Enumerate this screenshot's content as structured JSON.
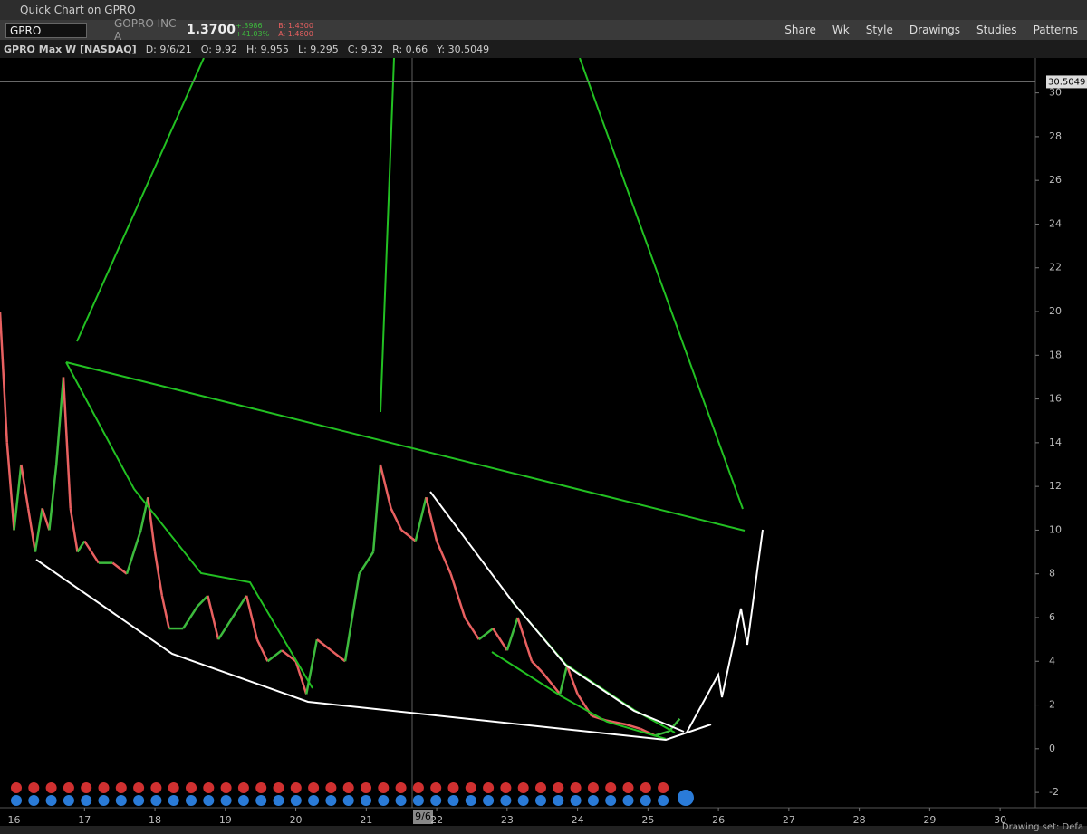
{
  "window": {
    "title": "Quick Chart on GPRO"
  },
  "quote": {
    "symbol": "GPRO",
    "company": "GOPRO INC A",
    "last": "1.3700",
    "change": "+.3986",
    "change_pct": "+41.03%",
    "bid": "B: 1.4300",
    "ask": "A: 1.4800"
  },
  "toolbar": {
    "buttons": [
      "Share",
      "Wk",
      "Style",
      "Drawings",
      "Studies",
      "Patterns"
    ]
  },
  "info": {
    "items": [
      "GPRO Max W [NASDAQ]",
      "D: 9/6/21",
      "O: 9.92",
      "H: 9.955",
      "L: 9.295",
      "C: 9.32",
      "R: 0.66",
      "Y: 30.5049"
    ]
  },
  "status": {
    "text": "Drawing set: Defa"
  },
  "chart_data": {
    "type": "line",
    "x": [
      2015.8,
      2015.9,
      2016.0,
      2016.1,
      2016.2,
      2016.3,
      2016.4,
      2016.5,
      2016.6,
      2016.7,
      2016.8,
      2016.9,
      2017.0,
      2017.2,
      2017.4,
      2017.6,
      2017.8,
      2017.9,
      2018.0,
      2018.1,
      2018.2,
      2018.4,
      2018.6,
      2018.75,
      2018.9,
      2019.1,
      2019.3,
      2019.45,
      2019.6,
      2019.8,
      2020.0,
      2020.15,
      2020.3,
      2020.5,
      2020.7,
      2020.9,
      2021.1,
      2021.2,
      2021.35,
      2021.5,
      2021.7,
      2021.85,
      2022.0,
      2022.2,
      2022.4,
      2022.6,
      2022.8,
      2023.0,
      2023.15,
      2023.35,
      2023.5,
      2023.75,
      2023.85,
      2024.0,
      2024.2,
      2024.4,
      2024.7,
      2024.9,
      2025.1,
      2025.3,
      2025.45
    ],
    "series": [
      {
        "name": "GPRO",
        "colors": {
          "up": "#3dbb3d",
          "down": "#e86060"
        },
        "values": [
          20,
          14,
          10,
          13,
          11,
          9,
          11,
          10,
          13,
          17,
          11,
          9,
          9.5,
          8.5,
          8.5,
          8,
          10,
          11.5,
          9,
          7,
          5.5,
          5.5,
          6.5,
          7,
          5,
          6,
          7,
          5,
          4,
          4.5,
          4,
          2.5,
          5,
          4.5,
          4,
          8,
          9,
          13,
          11,
          10,
          9.5,
          11.5,
          9.5,
          8,
          6,
          5,
          5.5,
          4.5,
          6,
          4,
          3.5,
          2.5,
          3.8,
          2.5,
          1.5,
          1.3,
          1.1,
          0.9,
          0.6,
          0.8,
          1.37
        ]
      }
    ],
    "xlim": [
      2015.8,
      2030.5
    ],
    "ylim": [
      -2.7,
      31.6
    ],
    "xticks": [
      {
        "value": 2016,
        "label": "16"
      },
      {
        "value": 2017,
        "label": "17"
      },
      {
        "value": 2018,
        "label": "18"
      },
      {
        "value": 2019,
        "label": "19"
      },
      {
        "value": 2020,
        "label": "20"
      },
      {
        "value": 2021,
        "label": "21"
      },
      {
        "value": 2022,
        "label": "22"
      },
      {
        "value": 2023,
        "label": "23"
      },
      {
        "value": 2024,
        "label": "24"
      },
      {
        "value": 2025,
        "label": "25"
      },
      {
        "value": 2026,
        "label": "26"
      },
      {
        "value": 2027,
        "label": "27"
      },
      {
        "value": 2028,
        "label": "28"
      },
      {
        "value": 2029,
        "label": "29"
      },
      {
        "value": 2030,
        "label": "30"
      }
    ],
    "yticks": [
      -2,
      0,
      2,
      4,
      6,
      8,
      10,
      12,
      14,
      16,
      18,
      20,
      22,
      24,
      26,
      28,
      30
    ],
    "crosshair": {
      "price": 30.5049,
      "date_label": "9/6"
    }
  }
}
